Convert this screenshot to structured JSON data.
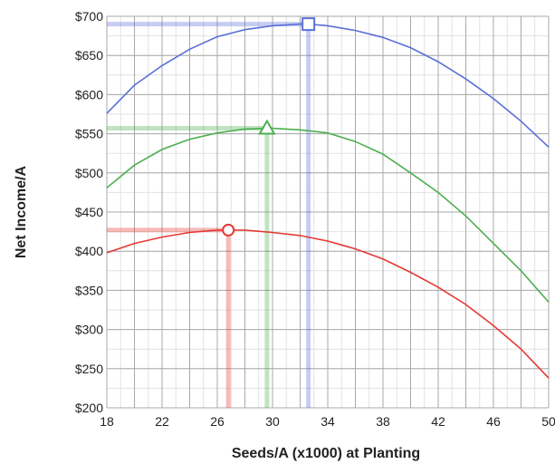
{
  "chart_data": {
    "type": "line",
    "title": "",
    "xlabel": "Seeds/A (x1000) at Planting",
    "ylabel": "Net Income/A",
    "xlim": [
      18,
      50
    ],
    "ylim": [
      200,
      700
    ],
    "x_ticks": [
      18,
      22,
      26,
      30,
      34,
      38,
      42,
      46,
      50
    ],
    "y_ticks": [
      200,
      250,
      300,
      350,
      400,
      450,
      500,
      550,
      600,
      650,
      700
    ],
    "y_tick_labels": [
      "$200",
      "$250",
      "$300",
      "$350",
      "$400",
      "$450",
      "$500",
      "$550",
      "$600",
      "$650",
      "$700"
    ],
    "x_minor_step": 1,
    "y_minor_step": 25,
    "grid": true,
    "legend": "none",
    "series": [
      {
        "color": "#5a6fd8",
        "marker": "square",
        "x": [
          18,
          20,
          22,
          24,
          26,
          28,
          30,
          32,
          32.6,
          34,
          36,
          38,
          40,
          42,
          44,
          46,
          48,
          50
        ],
        "y": [
          576,
          612,
          637,
          658,
          674,
          683,
          688,
          690,
          690,
          688,
          682,
          673,
          660,
          642,
          620,
          595,
          566,
          533
        ],
        "optimum": {
          "x": 32.6,
          "y": 690
        }
      },
      {
        "color": "#4caf50",
        "marker": "triangle",
        "x": [
          18,
          20,
          22,
          24,
          26,
          28,
          29.6,
          30,
          32,
          34,
          36,
          38,
          40,
          42,
          44,
          46,
          48,
          50
        ],
        "y": [
          481,
          510,
          530,
          543,
          551,
          556,
          557,
          557,
          555,
          551,
          540,
          524,
          500,
          475,
          445,
          410,
          375,
          335
        ],
        "optimum": {
          "x": 29.6,
          "y": 557
        }
      },
      {
        "color": "#e53935",
        "marker": "circle",
        "x": [
          18,
          20,
          22,
          24,
          26,
          26.8,
          28,
          30,
          32,
          34,
          36,
          38,
          40,
          42,
          44,
          46,
          48,
          50
        ],
        "y": [
          398,
          410,
          418,
          424,
          427,
          427,
          427,
          424,
          420,
          413,
          403,
          390,
          373,
          354,
          332,
          305,
          275,
          238
        ],
        "optimum": {
          "x": 26.8,
          "y": 427
        }
      }
    ]
  }
}
